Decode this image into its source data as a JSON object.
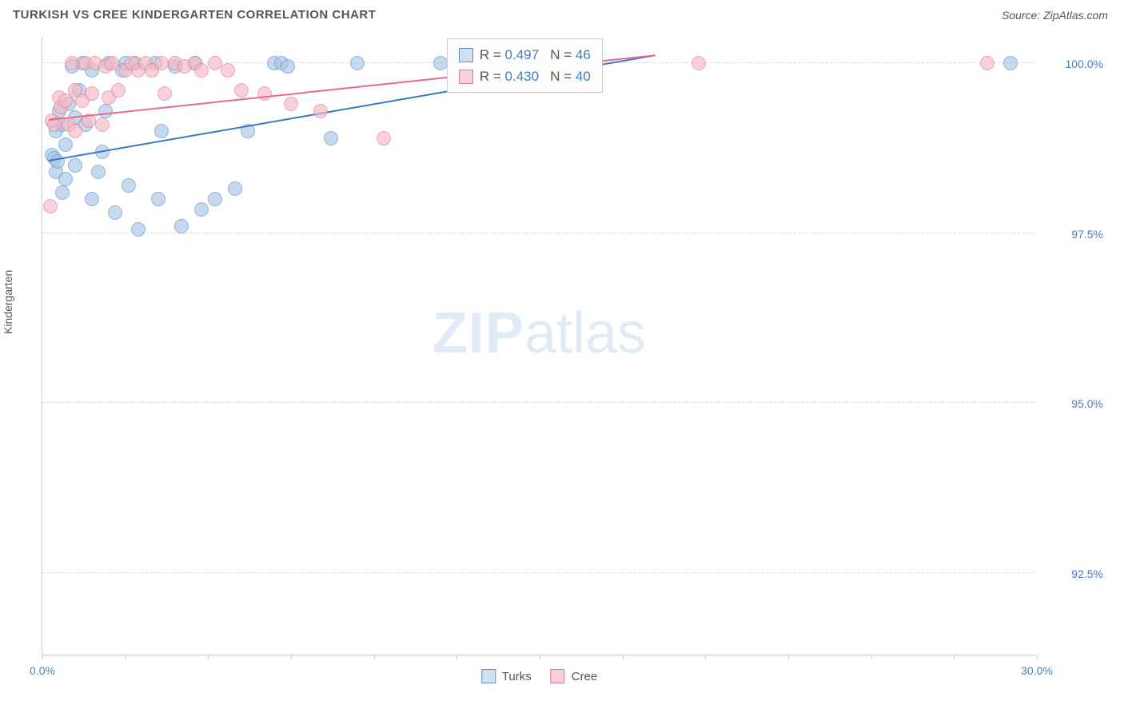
{
  "title": "TURKISH VS CREE KINDERGARTEN CORRELATION CHART",
  "source": "Source: ZipAtlas.com",
  "ylabel": "Kindergarten",
  "watermark_a": "ZIP",
  "watermark_b": "atlas",
  "chart": {
    "type": "scatter",
    "xlim": [
      0,
      30
    ],
    "ylim": [
      91.3,
      100.4
    ],
    "x_ticks": [
      0,
      2.5,
      5,
      7.5,
      10,
      12.5,
      15,
      17.5,
      20,
      22.5,
      25,
      27.5,
      30
    ],
    "x_tick_labels": {
      "0": "0.0%",
      "30": "30.0%"
    },
    "y_gridlines": [
      92.5,
      95.0,
      97.5,
      100.0
    ],
    "y_tick_labels": [
      "92.5%",
      "95.0%",
      "97.5%",
      "100.0%"
    ],
    "background_color": "#ffffff",
    "grid_color": "#dddddd",
    "axis_color": "#cccccc",
    "series": [
      {
        "name": "Turks",
        "color_fill": "#a7c7e7",
        "color_stroke": "#5a8fc7",
        "trend_color": "#3b78c9",
        "R": "0.497",
        "N": "46",
        "trend": {
          "x1": 0.2,
          "y1": 98.55,
          "x2": 18.5,
          "y2": 100.1
        },
        "points": [
          [
            0.3,
            98.65
          ],
          [
            0.35,
            98.6
          ],
          [
            0.4,
            98.4
          ],
          [
            0.4,
            99.0
          ],
          [
            0.45,
            98.55
          ],
          [
            0.5,
            99.3
          ],
          [
            0.6,
            99.1
          ],
          [
            0.6,
            98.1
          ],
          [
            0.7,
            98.3
          ],
          [
            0.7,
            98.8
          ],
          [
            0.8,
            99.4
          ],
          [
            0.9,
            99.95
          ],
          [
            1.0,
            98.5
          ],
          [
            1.0,
            99.2
          ],
          [
            1.1,
            99.6
          ],
          [
            1.2,
            100.0
          ],
          [
            1.3,
            99.1
          ],
          [
            1.5,
            98.0
          ],
          [
            1.5,
            99.9
          ],
          [
            1.7,
            98.4
          ],
          [
            1.8,
            98.7
          ],
          [
            1.9,
            99.3
          ],
          [
            2.0,
            100.0
          ],
          [
            2.2,
            97.8
          ],
          [
            2.4,
            99.9
          ],
          [
            2.5,
            100.0
          ],
          [
            2.6,
            98.2
          ],
          [
            2.8,
            100.0
          ],
          [
            2.9,
            97.55
          ],
          [
            3.4,
            100.0
          ],
          [
            3.5,
            98.0
          ],
          [
            3.6,
            99.0
          ],
          [
            4.0,
            99.95
          ],
          [
            4.2,
            97.6
          ],
          [
            4.6,
            100.0
          ],
          [
            4.8,
            97.85
          ],
          [
            5.2,
            98.0
          ],
          [
            5.8,
            98.15
          ],
          [
            6.2,
            99.0
          ],
          [
            7.0,
            100.0
          ],
          [
            7.2,
            100.0
          ],
          [
            7.4,
            99.95
          ],
          [
            8.7,
            98.9
          ],
          [
            9.5,
            100.0
          ],
          [
            12.0,
            100.0
          ],
          [
            29.2,
            100.0
          ]
        ]
      },
      {
        "name": "Cree",
        "color_fill": "#f5b8c5",
        "color_stroke": "#e07a94",
        "trend_color": "#e86a8a",
        "R": "0.430",
        "N": "40",
        "trend": {
          "x1": 0.2,
          "y1": 99.15,
          "x2": 18.5,
          "y2": 100.1
        },
        "points": [
          [
            0.25,
            97.9
          ],
          [
            0.3,
            99.15
          ],
          [
            0.35,
            99.1
          ],
          [
            0.5,
            99.5
          ],
          [
            0.55,
            99.35
          ],
          [
            0.7,
            99.45
          ],
          [
            0.8,
            99.1
          ],
          [
            0.9,
            100.0
          ],
          [
            1.0,
            99.0
          ],
          [
            1.0,
            99.6
          ],
          [
            1.2,
            99.45
          ],
          [
            1.3,
            100.0
          ],
          [
            1.4,
            99.15
          ],
          [
            1.5,
            99.55
          ],
          [
            1.6,
            100.0
          ],
          [
            1.8,
            99.1
          ],
          [
            1.9,
            99.95
          ],
          [
            2.0,
            99.5
          ],
          [
            2.1,
            100.0
          ],
          [
            2.3,
            99.6
          ],
          [
            2.5,
            99.9
          ],
          [
            2.7,
            100.0
          ],
          [
            2.9,
            99.9
          ],
          [
            3.1,
            100.0
          ],
          [
            3.3,
            99.9
          ],
          [
            3.6,
            100.0
          ],
          [
            3.7,
            99.55
          ],
          [
            4.0,
            100.0
          ],
          [
            4.3,
            99.95
          ],
          [
            4.6,
            100.0
          ],
          [
            4.8,
            99.9
          ],
          [
            5.2,
            100.0
          ],
          [
            5.6,
            99.9
          ],
          [
            6.0,
            99.6
          ],
          [
            6.7,
            99.55
          ],
          [
            7.5,
            99.4
          ],
          [
            8.4,
            99.3
          ],
          [
            10.3,
            98.9
          ],
          [
            19.8,
            100.0
          ],
          [
            28.5,
            100.0
          ]
        ]
      }
    ]
  },
  "legend_stats": [
    {
      "cls": "blue",
      "r_label": "R = ",
      "r": "0.497",
      "n_label": "N = ",
      "n": "46"
    },
    {
      "cls": "pink",
      "r_label": "R = ",
      "r": "0.430",
      "n_label": "N = ",
      "n": "40"
    }
  ],
  "bottom_legend": [
    {
      "cls": "blue",
      "label": "Turks"
    },
    {
      "cls": "pink",
      "label": "Cree"
    }
  ]
}
